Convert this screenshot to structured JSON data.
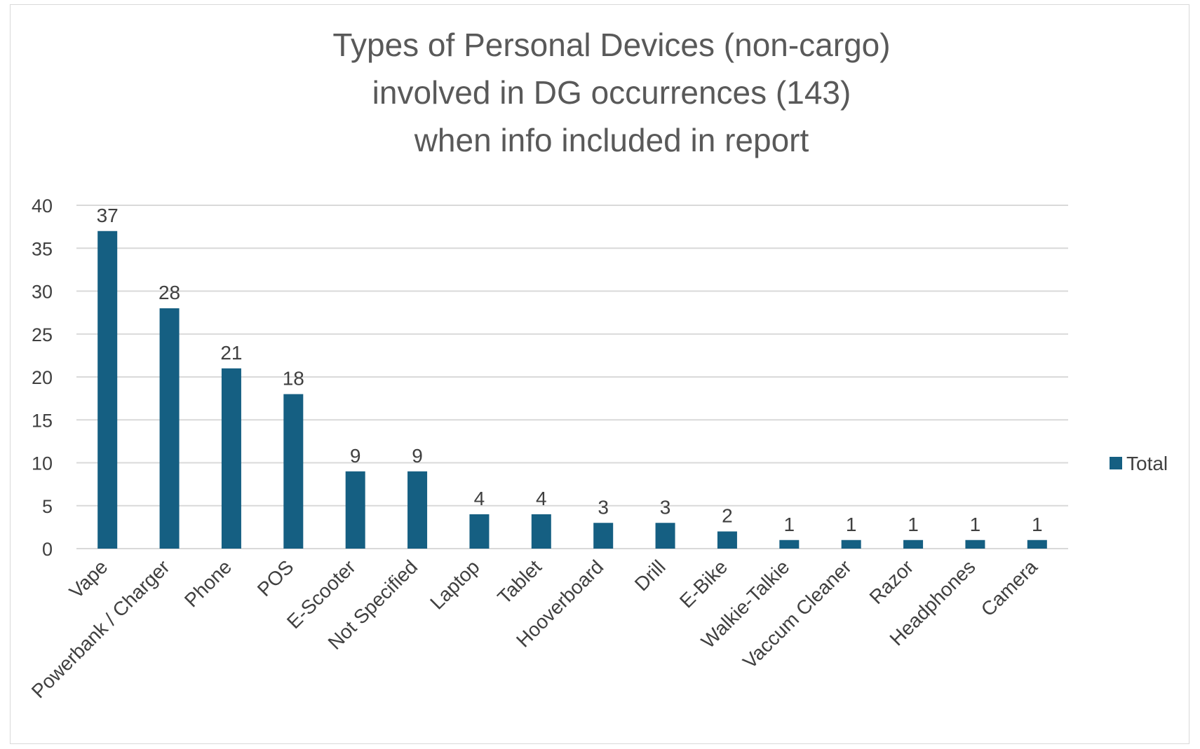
{
  "chart_data": {
    "type": "bar",
    "title": [
      "Types of Personal Devices (non-cargo)",
      "involved in DG occurrences (143)",
      "when info included in report"
    ],
    "categories": [
      "Vape",
      "Powerbank / Charger",
      "Phone",
      "POS",
      "E-Scooter",
      "Not Specified",
      "Laptop",
      "Tablet",
      "Hooverboard",
      "Drill",
      "E-Bike",
      "Walkie-Talkie",
      "Vaccum Cleaner",
      "Razor",
      "Headphones",
      "Camera"
    ],
    "series": [
      {
        "name": "Total",
        "values": [
          37,
          28,
          21,
          18,
          9,
          9,
          4,
          4,
          3,
          3,
          2,
          1,
          1,
          1,
          1,
          1
        ]
      }
    ],
    "yticks": [
      "0",
      "5",
      "10",
      "15",
      "20",
      "25",
      "30",
      "35",
      "40"
    ],
    "ylim": [
      0,
      40
    ],
    "grid": true,
    "legend_position": "right",
    "bar_color": "#155f82",
    "data_labels": true
  }
}
